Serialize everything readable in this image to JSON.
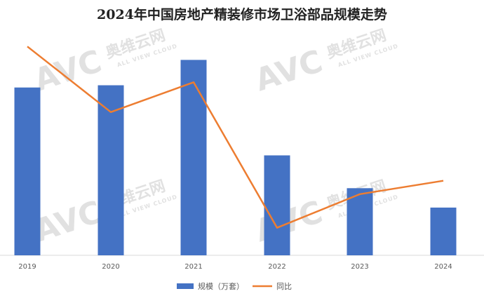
{
  "watermark": {
    "brand": "AVC",
    "cn_text": "奥维云网",
    "en_text": "ALL VIEW CLOUD"
  },
  "chart_data": {
    "type": "bar",
    "title": "2024年中国房地产精装修市场卫浴部品规模走势",
    "categories": [
      "2019",
      "2020",
      "2021",
      "2022",
      "2023",
      "2024"
    ],
    "series": [
      {
        "name": "规模（万套）",
        "type": "bar",
        "color": "#4472c4",
        "values": [
          225,
          228,
          262,
          134,
          90,
          64
        ]
      },
      {
        "name": "同比",
        "type": "line",
        "color": "#ed7d31",
        "values": [
          280,
          192,
          232,
          37,
          82,
          100
        ]
      }
    ],
    "xlabel": "",
    "ylabel": "",
    "grid": false,
    "legend_position": "bottom"
  }
}
